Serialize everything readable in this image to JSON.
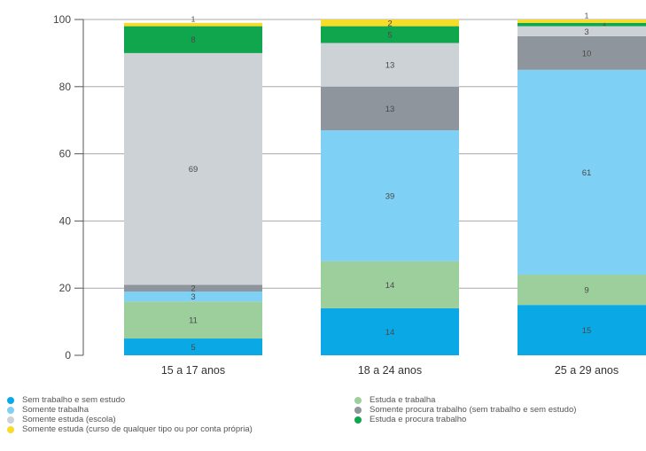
{
  "chart_data": {
    "type": "bar",
    "stacked": true,
    "title": "",
    "xlabel": "",
    "ylabel": "",
    "ylim": [
      0,
      100
    ],
    "yticks": [
      0,
      20,
      40,
      60,
      80,
      100
    ],
    "grid": true,
    "legend_position": "bottom",
    "categories": [
      "15 a 17 anos",
      "18 a 24 anos",
      "25 a 29 anos"
    ],
    "series": [
      {
        "name": "Sem trabalho e sem estudo",
        "color": "#0aa9e6",
        "values": [
          5,
          14,
          15
        ],
        "labels": [
          "5",
          "14",
          "15"
        ]
      },
      {
        "name": "Estuda e trabalha",
        "color": "#9dcf9c",
        "values": [
          11,
          14,
          9
        ],
        "labels": [
          "11",
          "14",
          "9"
        ]
      },
      {
        "name": "Somente trabalha",
        "color": "#7fd0f5",
        "values": [
          3,
          39,
          61
        ],
        "labels": [
          "3",
          "39",
          "61"
        ]
      },
      {
        "name": "Somente procura trabalho (sem trabalho e sem estudo)",
        "color": "#8f959c",
        "values": [
          2,
          13,
          10
        ],
        "labels": [
          "2",
          "13",
          "10"
        ]
      },
      {
        "name": "Somente estuda (escola)",
        "color": "#cdd2d7",
        "values": [
          69,
          13,
          3
        ],
        "labels": [
          "69",
          "13",
          "3"
        ]
      },
      {
        "name": "Estuda e procura trabalho",
        "color": "#0fa64e",
        "values": [
          8,
          5,
          1
        ],
        "labels": [
          "8",
          "5",
          "1"
        ]
      },
      {
        "name": "Somente estuda (curso de qualquer tipo ou por conta própria)",
        "color": "#f7dc2a",
        "values": [
          1,
          2,
          1
        ],
        "labels": [
          "1",
          "2",
          "1"
        ]
      }
    ]
  },
  "legend": {
    "items": [
      {
        "label": "Sem trabalho e sem estudo",
        "color": "#0aa9e6"
      },
      {
        "label": "Somente trabalha",
        "color": "#7fd0f5"
      },
      {
        "label": "Somente estuda (escola)",
        "color": "#cdd2d7"
      },
      {
        "label": "Somente estuda (curso de qualquer tipo ou por conta própria)",
        "color": "#f7dc2a"
      },
      {
        "label": "Estuda e trabalha",
        "color": "#9dcf9c"
      },
      {
        "label": "Somente procura trabalho (sem trabalho e sem estudo)",
        "color": "#8f959c"
      },
      {
        "label": "Estuda e procura trabalho",
        "color": "#0fa64e"
      }
    ]
  }
}
